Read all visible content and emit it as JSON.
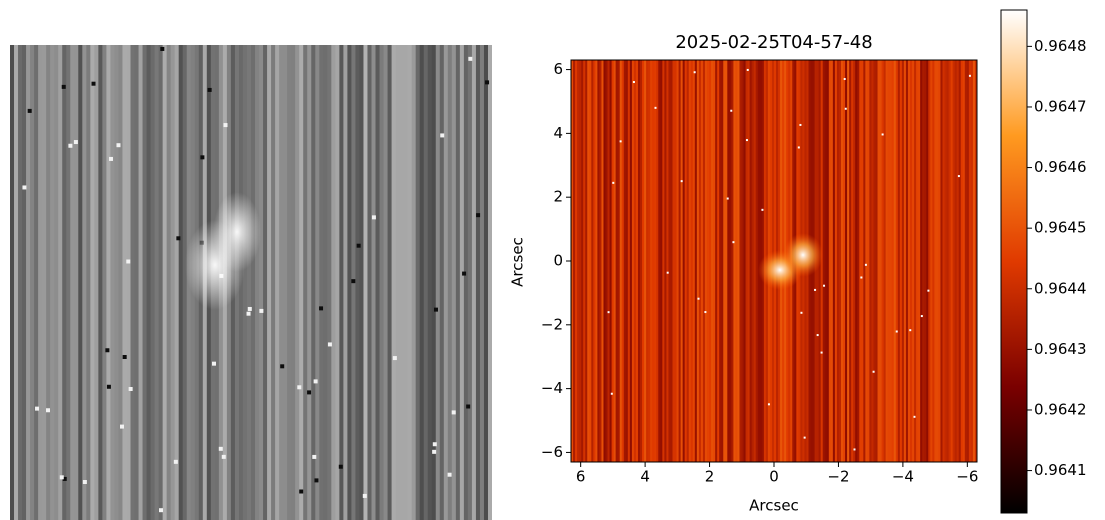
{
  "chart_data": [
    {
      "type": "image",
      "colormap": [
        "#000000",
        "#ffffff"
      ]
    },
    {
      "type": "image",
      "title": "2025-02-25T04-57-48",
      "xlabel": "Arcsec",
      "ylabel": "Arcsec",
      "xlim": [
        6.3,
        -6.3
      ],
      "ylim": [
        -6.3,
        6.3
      ],
      "xticks": [
        6,
        4,
        2,
        0,
        {
          "value": -2,
          "label": "−2"
        },
        {
          "value": -4,
          "label": "−4"
        },
        {
          "value": -6,
          "label": "−6"
        }
      ],
      "yticks": [
        {
          "value": -6,
          "label": "−6"
        },
        {
          "value": -4,
          "label": "−4"
        },
        {
          "value": -2,
          "label": "−2"
        },
        0,
        2,
        4,
        6
      ],
      "colormap": [
        "#000000",
        "#7a0000",
        "#e03a00",
        "#ff9a20",
        "#ffffff"
      ],
      "clim": [
        0.96403,
        0.96486
      ],
      "cticks": [
        0.9641,
        0.9642,
        0.9643,
        0.9644,
        0.9645,
        0.9646,
        0.9647,
        0.9648
      ]
    }
  ]
}
